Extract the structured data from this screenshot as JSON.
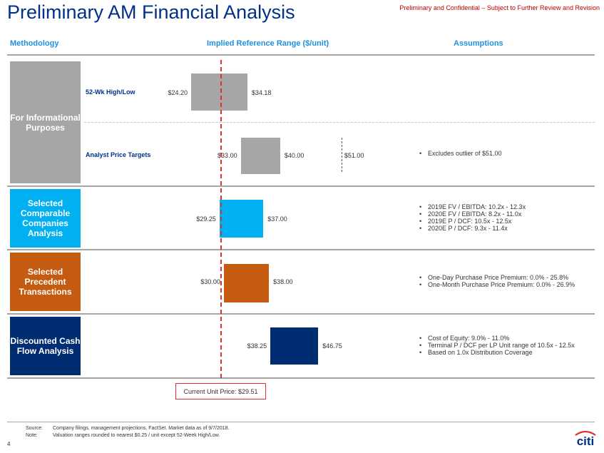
{
  "header": {
    "title": "Preliminary AM Financial Analysis",
    "confidential": "Preliminary and Confidential – Subject to Further Review and Revision"
  },
  "columns": {
    "methodology": "Methodology",
    "range": "Implied Reference Range ($/unit)",
    "assumptions": "Assumptions"
  },
  "methods": {
    "informational": "For Informational Purposes",
    "comparable": "Selected Comparable Companies Analysis",
    "precedent": "Selected Precedent Transactions",
    "dcf": "Discounted Cash Flow Analysis"
  },
  "colors": {
    "gray": "#a6a6a6",
    "comparable": "#00b0f0",
    "precedent": "#c55a11",
    "dcf": "#002d72",
    "current_line": "#e0302e",
    "title": "#003087"
  },
  "chart_data": {
    "type": "bar",
    "orientation": "horizontal-range",
    "current_price": 29.51,
    "current_price_label": "Current Unit Price: $29.51",
    "outlier": {
      "value": 51.0,
      "label": "$51.00"
    },
    "rows": [
      {
        "key": "wk52",
        "name": "52-Wk High/Low",
        "low": 24.2,
        "high": 34.18,
        "low_label": "$24.20",
        "high_label": "$34.18",
        "color": "#a6a6a6"
      },
      {
        "key": "analyst",
        "name": "Analyst Price Targets",
        "low": 33.0,
        "high": 40.0,
        "low_label": "$33.00",
        "high_label": "$40.00",
        "color": "#a6a6a6"
      },
      {
        "key": "comparable",
        "name": "",
        "low": 29.25,
        "high": 37.0,
        "low_label": "$29.25",
        "high_label": "$37.00",
        "color": "#00b0f0"
      },
      {
        "key": "precedent",
        "name": "",
        "low": 30.0,
        "high": 38.0,
        "low_label": "$30.00",
        "high_label": "$38.00",
        "color": "#c55a11"
      },
      {
        "key": "dcf",
        "name": "",
        "low": 38.25,
        "high": 46.75,
        "low_label": "$38.25",
        "high_label": "$46.75",
        "color": "#002d72"
      }
    ]
  },
  "assumptions": {
    "analyst": [
      "Excludes outlier of $51.00"
    ],
    "comparable": [
      "2019E FV / EBITDA: 10.2x - 12.3x",
      "2020E FV / EBITDA: 8.2x - 11.0x",
      "2019E P / DCF: 10.5x - 12.5x",
      "2020E P / DCF: 9.3x - 11.4x"
    ],
    "precedent": [
      "One-Day Purchase Price Premium: 0.0% - 25.8%",
      "One-Month Purchase Price Premium: 0.0% - 26.9%"
    ],
    "dcf": [
      "Cost of Equity: 9.0% - 11.0%",
      "Terminal P / DCF per LP Unit range of 10.5x - 12.5x",
      "Based on 1.0x Distribution Coverage"
    ]
  },
  "footer": {
    "source_label": "Source:",
    "source_text": "Company filings, management projections, FactSet. Market data as of 9/7/2018.",
    "note_label": "Note:",
    "note_text": "Valuation ranges rounded to nearest $0.25 / unit except 52-Week High/Low.",
    "page_number": "4",
    "logo_text": "citi"
  }
}
